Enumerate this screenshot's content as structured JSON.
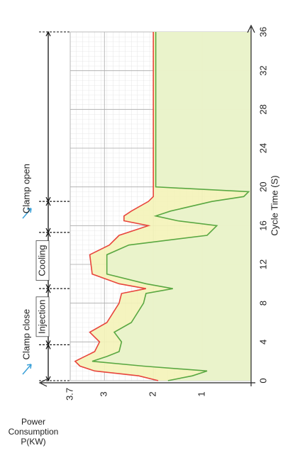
{
  "chart_data": {
    "type": "area",
    "xlabel": "Cycle Time (S)",
    "ylabel": "Power Consumption P(KW)",
    "x": [
      0,
      0.5,
      1,
      1.5,
      2,
      2.5,
      3,
      4,
      5,
      6,
      8,
      9,
      9.5,
      10,
      11,
      13,
      14,
      15,
      16,
      16.5,
      17,
      17.5,
      18.5,
      19,
      19.5,
      20,
      24,
      28,
      32,
      36
    ],
    "series": [
      {
        "color": "#e8453c",
        "fill": "#f4f3b8",
        "values": [
          1.9,
          2.3,
          3.2,
          3.5,
          3.6,
          3.4,
          3.2,
          3.1,
          3.3,
          2.95,
          2.7,
          2.65,
          2.15,
          2.7,
          3.25,
          3.3,
          2.9,
          2.7,
          2.1,
          2.6,
          2.6,
          2.45,
          2.1,
          2.0,
          2.0,
          2.0,
          2.0,
          2.0,
          2.0,
          2.0
        ]
      },
      {
        "color": "#5aa842",
        "fill": "#e9f3cc",
        "values": [
          1.7,
          1.2,
          0.9,
          2.2,
          3.25,
          2.95,
          2.7,
          2.65,
          2.8,
          2.45,
          2.2,
          2.15,
          1.6,
          2.15,
          2.95,
          2.95,
          2.5,
          0.9,
          0.7,
          1.5,
          1.95,
          1.65,
          0.8,
          0.15,
          0.05,
          1.95,
          1.95,
          1.95,
          1.95,
          1.95
        ]
      }
    ],
    "xlim": [
      0,
      36
    ],
    "xticks": [
      0,
      4,
      8,
      12,
      16,
      20,
      24,
      28,
      32,
      36
    ],
    "ylim": [
      0,
      3.7
    ],
    "yticks": [
      1,
      2,
      3,
      3.7
    ],
    "grid": true,
    "phases": [
      {
        "label": "Clamp close",
        "start": 0,
        "end": 3.7
      },
      {
        "label": "Injection",
        "start": 3.7,
        "end": 9.5
      },
      {
        "label": "Cooling",
        "start": 9.5,
        "end": 15.3
      },
      {
        "label": "Clamp open",
        "start": 15.3,
        "end": 18.5
      },
      {
        "start": 18.5,
        "end": 36
      }
    ]
  }
}
